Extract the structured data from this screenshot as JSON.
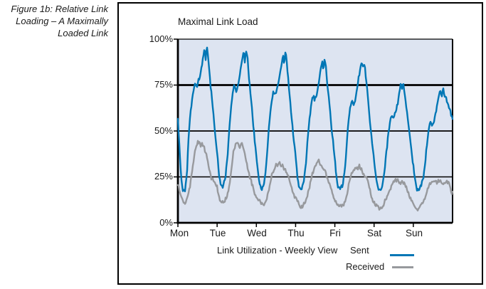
{
  "caption": {
    "lines": [
      "Figure 1b: Relative Link",
      "Loading – A Maximally",
      "Loaded Link"
    ]
  },
  "chart": {
    "title": "Maximal Link Load",
    "y_axis": {
      "labels": [
        "100%",
        "75%",
        "50%",
        "25%",
        "0%"
      ]
    },
    "x_axis": {
      "labels": [
        "Mon",
        "Tue",
        "Wed",
        "Thu",
        "Fri",
        "Sat",
        "Sun"
      ]
    },
    "legend": {
      "caption": "Link Utilization - Weekly View",
      "series": [
        {
          "label": "Sent",
          "color": "#0076b5"
        },
        {
          "label": "Received",
          "color": "#97999d"
        }
      ]
    },
    "colors": {
      "plot_bg": "#dde4f1",
      "grid": "#000000",
      "text": "#1a1a1a"
    }
  },
  "chart_data": {
    "type": "line",
    "title": "Maximal Link Load",
    "x_unit": "hours from Monday 00:00",
    "x_range": [
      0,
      168
    ],
    "x_tick_labels": [
      "Mon",
      "Tue",
      "Wed",
      "Thu",
      "Fri",
      "Sat",
      "Sun"
    ],
    "ylim": [
      0,
      100
    ],
    "y_ticks_percent": [
      0,
      25,
      50,
      75,
      100
    ],
    "grid": "horizontal",
    "legend_position": "bottom",
    "series": [
      {
        "name": "Sent",
        "color": "#0076b5",
        "points": [
          [
            0,
            57
          ],
          [
            1,
            40
          ],
          [
            2,
            24
          ],
          [
            3,
            18
          ],
          [
            4.5,
            18
          ],
          [
            5.5,
            26
          ],
          [
            6.5,
            45
          ],
          [
            7.5,
            58
          ],
          [
            8.5,
            66
          ],
          [
            9.5,
            73
          ],
          [
            10.5,
            76
          ],
          [
            11.5,
            73
          ],
          [
            12.5,
            77
          ],
          [
            13.5,
            80
          ],
          [
            14.5,
            86
          ],
          [
            15.5,
            90
          ],
          [
            16.3,
            95
          ],
          [
            17,
            88
          ],
          [
            17.6,
            96
          ],
          [
            18.4,
            92
          ],
          [
            19,
            85
          ],
          [
            20,
            75
          ],
          [
            21,
            66
          ],
          [
            22,
            56
          ],
          [
            23,
            46
          ],
          [
            24,
            38
          ],
          [
            25,
            28
          ],
          [
            26,
            21
          ],
          [
            27.5,
            19
          ],
          [
            29,
            24
          ],
          [
            30.5,
            38
          ],
          [
            31.5,
            52
          ],
          [
            32.5,
            62
          ],
          [
            33.5,
            70
          ],
          [
            34.5,
            75
          ],
          [
            35.5,
            72
          ],
          [
            36.5,
            74
          ],
          [
            37.5,
            78
          ],
          [
            38.5,
            84
          ],
          [
            39.5,
            89
          ],
          [
            40.3,
            94
          ],
          [
            41,
            87
          ],
          [
            41.7,
            95
          ],
          [
            42.5,
            91
          ],
          [
            43,
            84
          ],
          [
            44,
            74
          ],
          [
            45,
            64
          ],
          [
            46,
            54
          ],
          [
            47,
            45
          ],
          [
            48,
            37
          ],
          [
            49,
            27
          ],
          [
            50,
            21
          ],
          [
            51.5,
            18
          ],
          [
            53,
            23
          ],
          [
            54.5,
            36
          ],
          [
            55.5,
            50
          ],
          [
            56.5,
            60
          ],
          [
            57.5,
            68
          ],
          [
            58.5,
            72
          ],
          [
            59.5,
            70
          ],
          [
            60.5,
            72
          ],
          [
            61.5,
            76
          ],
          [
            62.5,
            82
          ],
          [
            63.5,
            87
          ],
          [
            64.3,
            92
          ],
          [
            65,
            86
          ],
          [
            65.8,
            93
          ],
          [
            66.5,
            89
          ],
          [
            67,
            82
          ],
          [
            68,
            73
          ],
          [
            69,
            63
          ],
          [
            70,
            53
          ],
          [
            71,
            44
          ],
          [
            72,
            36
          ],
          [
            73,
            26
          ],
          [
            74,
            20
          ],
          [
            75.5,
            18
          ],
          [
            77,
            22
          ],
          [
            78.5,
            34
          ],
          [
            79.5,
            47
          ],
          [
            80.5,
            57
          ],
          [
            81.5,
            64
          ],
          [
            82.5,
            69
          ],
          [
            83.5,
            67
          ],
          [
            84.5,
            69
          ],
          [
            85.5,
            73
          ],
          [
            86.5,
            78
          ],
          [
            87.5,
            84
          ],
          [
            88.3,
            88
          ],
          [
            89,
            83
          ],
          [
            89.8,
            89
          ],
          [
            90.5,
            86
          ],
          [
            91,
            80
          ],
          [
            92,
            71
          ],
          [
            93,
            61
          ],
          [
            94,
            51
          ],
          [
            95,
            43
          ],
          [
            96,
            35
          ],
          [
            97,
            25
          ],
          [
            98,
            19
          ],
          [
            99.5,
            18
          ],
          [
            101,
            21
          ],
          [
            102.5,
            33
          ],
          [
            103.5,
            46
          ],
          [
            104.5,
            56
          ],
          [
            105.5,
            63
          ],
          [
            106.5,
            67
          ],
          [
            107.5,
            65
          ],
          [
            108.5,
            67
          ],
          [
            109.5,
            72
          ],
          [
            110.5,
            78
          ],
          [
            111.5,
            84
          ],
          [
            112.4,
            89
          ],
          [
            113,
            84
          ],
          [
            113.8,
            88
          ],
          [
            114.5,
            84
          ],
          [
            115,
            79
          ],
          [
            116,
            70
          ],
          [
            117,
            60
          ],
          [
            118,
            50
          ],
          [
            119,
            42
          ],
          [
            120,
            34
          ],
          [
            121,
            25
          ],
          [
            122,
            20
          ],
          [
            123.5,
            18
          ],
          [
            125,
            20
          ],
          [
            126.5,
            28
          ],
          [
            127.5,
            38
          ],
          [
            128.5,
            47
          ],
          [
            129.5,
            54
          ],
          [
            130.5,
            58
          ],
          [
            131.5,
            56
          ],
          [
            132.5,
            58
          ],
          [
            133.5,
            61
          ],
          [
            134.5,
            66
          ],
          [
            135.5,
            71
          ],
          [
            136.4,
            77
          ],
          [
            137,
            72
          ],
          [
            137.8,
            75
          ],
          [
            138.5,
            72
          ],
          [
            139,
            68
          ],
          [
            140,
            62
          ],
          [
            141,
            54
          ],
          [
            142,
            46
          ],
          [
            143,
            38
          ],
          [
            144,
            31
          ],
          [
            145,
            24
          ],
          [
            146,
            19
          ],
          [
            147.5,
            18
          ],
          [
            149,
            20
          ],
          [
            150.5,
            27
          ],
          [
            151.5,
            36
          ],
          [
            152.5,
            44
          ],
          [
            153.5,
            51
          ],
          [
            154.5,
            55
          ],
          [
            155.5,
            53
          ],
          [
            156.5,
            55
          ],
          [
            157.5,
            59
          ],
          [
            158.5,
            63
          ],
          [
            159.5,
            68
          ],
          [
            160.5,
            72
          ],
          [
            161.3,
            68
          ],
          [
            162,
            74
          ],
          [
            162.8,
            71
          ],
          [
            163.5,
            69
          ],
          [
            164.5,
            66
          ],
          [
            166,
            63
          ],
          [
            167,
            60
          ],
          [
            168,
            57
          ]
        ]
      },
      {
        "name": "Received",
        "color": "#97999d",
        "points": [
          [
            0,
            21
          ],
          [
            1.5,
            15
          ],
          [
            3,
            12
          ],
          [
            4.5,
            11
          ],
          [
            6,
            14
          ],
          [
            7.5,
            20
          ],
          [
            9,
            30
          ],
          [
            10,
            37
          ],
          [
            11,
            41
          ],
          [
            12,
            43
          ],
          [
            13,
            44
          ],
          [
            14,
            42
          ],
          [
            15,
            44
          ],
          [
            16,
            41
          ],
          [
            17,
            38
          ],
          [
            18,
            34
          ],
          [
            19,
            30
          ],
          [
            20,
            26
          ],
          [
            21.5,
            23
          ],
          [
            23,
            21
          ],
          [
            24,
            19
          ],
          [
            25.5,
            13
          ],
          [
            27,
            11
          ],
          [
            28.5,
            11
          ],
          [
            30,
            14
          ],
          [
            31.5,
            21
          ],
          [
            33,
            31
          ],
          [
            34,
            38
          ],
          [
            35,
            42
          ],
          [
            36,
            44
          ],
          [
            37,
            43
          ],
          [
            38,
            41
          ],
          [
            39,
            44
          ],
          [
            40,
            40
          ],
          [
            41,
            37
          ],
          [
            42,
            33
          ],
          [
            43,
            29
          ],
          [
            44,
            25
          ],
          [
            45.5,
            20
          ],
          [
            47,
            16
          ],
          [
            48,
            14
          ],
          [
            49.5,
            12
          ],
          [
            51,
            10
          ],
          [
            52.5,
            10
          ],
          [
            54,
            12
          ],
          [
            55.5,
            17
          ],
          [
            57,
            24
          ],
          [
            58,
            28
          ],
          [
            59,
            30
          ],
          [
            60,
            32
          ],
          [
            61,
            31
          ],
          [
            62,
            33
          ],
          [
            63,
            31
          ],
          [
            64,
            32
          ],
          [
            65,
            30
          ],
          [
            66,
            28
          ],
          [
            67,
            26
          ],
          [
            68,
            24
          ],
          [
            69.5,
            20
          ],
          [
            71,
            15
          ],
          [
            72,
            13
          ],
          [
            73.5,
            11
          ],
          [
            75,
            9
          ],
          [
            76.5,
            9
          ],
          [
            78,
            11
          ],
          [
            79.5,
            16
          ],
          [
            81,
            22
          ],
          [
            82,
            26
          ],
          [
            83,
            28
          ],
          [
            84,
            30
          ],
          [
            85,
            32
          ],
          [
            86,
            35
          ],
          [
            87,
            32
          ],
          [
            88,
            30
          ],
          [
            89,
            29
          ],
          [
            90,
            28
          ],
          [
            91,
            26
          ],
          [
            92,
            24
          ],
          [
            93.5,
            19
          ],
          [
            95,
            14
          ],
          [
            96,
            12
          ],
          [
            97.5,
            10
          ],
          [
            99,
            9
          ],
          [
            100.5,
            9
          ],
          [
            102,
            11
          ],
          [
            103.5,
            16
          ],
          [
            105,
            22
          ],
          [
            106,
            26
          ],
          [
            107,
            28
          ],
          [
            108,
            30
          ],
          [
            109,
            31
          ],
          [
            110,
            29
          ],
          [
            111,
            31
          ],
          [
            112,
            29
          ],
          [
            113,
            28
          ],
          [
            114,
            26
          ],
          [
            115,
            25
          ],
          [
            116,
            23
          ],
          [
            117.5,
            18
          ],
          [
            119,
            13
          ],
          [
            120,
            11
          ],
          [
            121.5,
            9
          ],
          [
            123,
            8
          ],
          [
            124.5,
            8
          ],
          [
            126,
            10
          ],
          [
            127.5,
            13
          ],
          [
            129,
            17
          ],
          [
            130.5,
            20
          ],
          [
            132,
            22
          ],
          [
            133.5,
            23
          ],
          [
            135,
            23
          ],
          [
            136.5,
            22
          ],
          [
            138,
            21
          ],
          [
            139.5,
            20
          ],
          [
            141,
            17
          ],
          [
            142.5,
            12
          ],
          [
            144,
            10
          ],
          [
            145.5,
            8
          ],
          [
            147,
            8
          ],
          [
            148.5,
            9
          ],
          [
            150,
            11
          ],
          [
            151.5,
            15
          ],
          [
            153,
            19
          ],
          [
            154.5,
            21
          ],
          [
            156,
            23
          ],
          [
            157.5,
            23
          ],
          [
            159,
            22
          ],
          [
            160.5,
            22
          ],
          [
            162,
            21
          ],
          [
            163.5,
            22
          ],
          [
            165,
            22
          ],
          [
            166.2,
            21
          ],
          [
            167.2,
            16
          ],
          [
            168,
            17
          ]
        ]
      }
    ]
  }
}
